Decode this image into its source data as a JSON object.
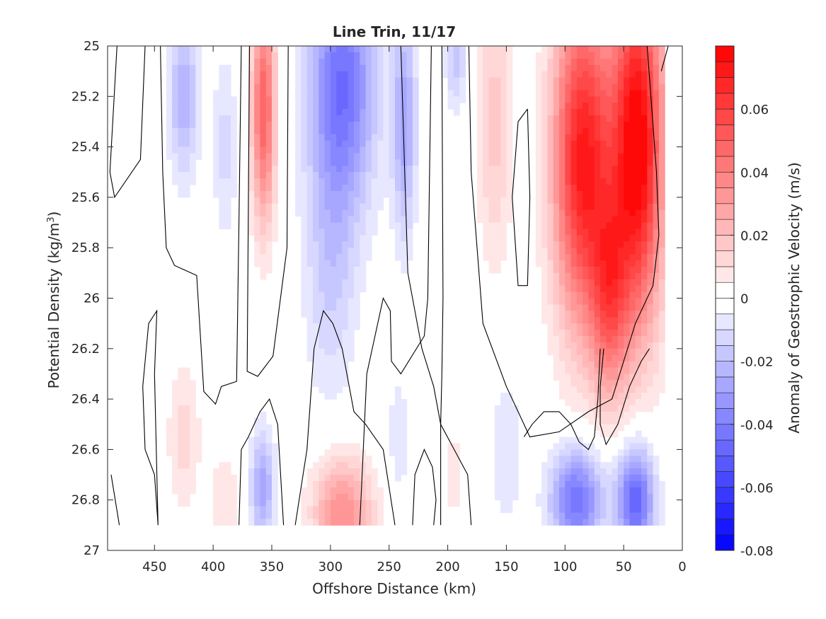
{
  "chart_data": {
    "type": "heatmap",
    "title": "Line Trin, 11/17",
    "xlabel": "Offshore Distance (km)",
    "ylabel_main": "Potential Density (kg/m",
    "ylabel_sup": "3",
    "ylabel_close": ")",
    "xlim": [
      490,
      0
    ],
    "ylim": [
      25,
      27
    ],
    "x_ticks": [
      450,
      400,
      350,
      300,
      250,
      200,
      150,
      100,
      50,
      0
    ],
    "y_ticks": [
      25,
      25.2,
      25.4,
      25.6,
      25.8,
      26,
      26.2,
      26.4,
      26.6,
      26.8,
      27
    ],
    "y_tick_labels": [
      "25",
      "25.2",
      "25.4",
      "25.6",
      "25.8",
      "26",
      "26.2",
      "26.4",
      "26.6",
      "26.8",
      "27"
    ],
    "colorbar": {
      "label": "Anomaly of Geostrophic Velocity (m/s)",
      "range": [
        -0.08,
        0.08
      ],
      "levels": 32,
      "ticks": [
        -0.08,
        -0.06,
        -0.04,
        -0.02,
        0,
        0.02,
        0.04,
        0.06
      ],
      "tick_labels": [
        "-0.08",
        "-0.06",
        "-0.04",
        "-0.02",
        "0",
        "0.02",
        "0.04",
        "0.06"
      ],
      "low_color": "#0000ff",
      "mid_color": "#ffffff",
      "high_color": "#ff0000"
    },
    "data_extent": {
      "x": [
        445,
        15
      ],
      "y": [
        25,
        26.9
      ]
    },
    "features": [
      {
        "x": 425,
        "y": 25.2,
        "rx": 13,
        "ry": 0.32,
        "v": -0.024
      },
      {
        "x": 390,
        "y": 25.4,
        "rx": 10,
        "ry": 0.35,
        "v": -0.012
      },
      {
        "x": 425,
        "y": 26.55,
        "rx": 14,
        "ry": 0.3,
        "v": 0.012
      },
      {
        "x": 390,
        "y": 26.8,
        "rx": 12,
        "ry": 0.2,
        "v": 0.01
      },
      {
        "x": 357,
        "y": 25.25,
        "rx": 10,
        "ry": 0.45,
        "v": 0.05
      },
      {
        "x": 358,
        "y": 26.75,
        "rx": 10,
        "ry": 0.22,
        "v": -0.028
      },
      {
        "x": 290,
        "y": 25.15,
        "rx": 28,
        "ry": 0.5,
        "v": -0.045
      },
      {
        "x": 300,
        "y": 25.9,
        "rx": 22,
        "ry": 0.5,
        "v": -0.015
      },
      {
        "x": 290,
        "y": 26.85,
        "rx": 25,
        "ry": 0.22,
        "v": 0.035
      },
      {
        "x": 237,
        "y": 25.3,
        "rx": 10,
        "ry": 0.45,
        "v": -0.028
      },
      {
        "x": 242,
        "y": 26.55,
        "rx": 8,
        "ry": 0.25,
        "v": -0.01
      },
      {
        "x": 193,
        "y": 25.05,
        "rx": 9,
        "ry": 0.2,
        "v": -0.018
      },
      {
        "x": 195,
        "y": 26.7,
        "rx": 8,
        "ry": 0.2,
        "v": 0.008
      },
      {
        "x": 160,
        "y": 25.3,
        "rx": 15,
        "ry": 0.55,
        "v": 0.017
      },
      {
        "x": 150,
        "y": 26.6,
        "rx": 14,
        "ry": 0.3,
        "v": -0.01
      },
      {
        "x": 85,
        "y": 25.45,
        "rx": 25,
        "ry": 0.65,
        "v": 0.072
      },
      {
        "x": 38,
        "y": 25.4,
        "rx": 22,
        "ry": 0.7,
        "v": 0.082
      },
      {
        "x": 62,
        "y": 26.0,
        "rx": 16,
        "ry": 0.4,
        "v": 0.04
      },
      {
        "x": 90,
        "y": 26.8,
        "rx": 22,
        "ry": 0.2,
        "v": -0.045
      },
      {
        "x": 40,
        "y": 26.8,
        "rx": 16,
        "ry": 0.22,
        "v": -0.05
      }
    ],
    "zero_contours": [
      [
        [
          482,
          25
        ],
        [
          488,
          25.5
        ],
        [
          484,
          25.6
        ],
        [
          462,
          25.45
        ],
        [
          458,
          25.0
        ]
      ],
      [
        [
          487,
          26.7
        ],
        [
          480,
          26.9
        ]
      ],
      [
        [
          447,
          26.9
        ],
        [
          450,
          26.7
        ],
        [
          458,
          26.6
        ],
        [
          460,
          26.35
        ],
        [
          455,
          26.1
        ],
        [
          448,
          26.05
        ],
        [
          450,
          26.3
        ],
        [
          447,
          26.9
        ]
      ],
      [
        [
          445,
          25
        ],
        [
          443,
          25.5
        ],
        [
          440,
          25.8
        ],
        [
          433,
          25.87
        ],
        [
          414,
          25.91
        ],
        [
          408,
          26.37
        ],
        [
          398,
          26.42
        ],
        [
          393,
          26.35
        ],
        [
          380,
          26.33
        ],
        [
          378,
          25.7
        ],
        [
          376,
          25.0
        ]
      ],
      [
        [
          369,
          25
        ],
        [
          371,
          26.29
        ],
        [
          362,
          26.31
        ],
        [
          349,
          26.23
        ],
        [
          337,
          25.8
        ],
        [
          336,
          25.0
        ]
      ],
      [
        [
          240,
          25
        ],
        [
          234,
          25.9
        ],
        [
          222,
          26.2
        ],
        [
          212,
          26.35
        ],
        [
          206,
          26.5
        ],
        [
          183,
          26.7
        ],
        [
          180,
          26.9
        ]
      ],
      [
        [
          214,
          25
        ],
        [
          217,
          26.0
        ],
        [
          220,
          26.15
        ],
        [
          240,
          26.3
        ],
        [
          248,
          26.25
        ],
        [
          249,
          26.05
        ],
        [
          255,
          26.0
        ],
        [
          262,
          26.15
        ],
        [
          269,
          26.3
        ],
        [
          275,
          26.9
        ]
      ],
      [
        [
          378,
          26.9
        ],
        [
          376,
          26.6
        ],
        [
          370,
          26.55
        ],
        [
          360,
          26.45
        ],
        [
          352,
          26.4
        ],
        [
          345,
          26.5
        ],
        [
          340,
          26.9
        ]
      ],
      [
        [
          330,
          26.9
        ],
        [
          320,
          26.6
        ],
        [
          314,
          26.2
        ],
        [
          306,
          26.05
        ],
        [
          298,
          26.1
        ],
        [
          290,
          26.2
        ],
        [
          280,
          26.45
        ],
        [
          270,
          26.5
        ],
        [
          255,
          26.6
        ],
        [
          245,
          26.9
        ]
      ],
      [
        [
          230,
          26.9
        ],
        [
          228,
          26.7
        ],
        [
          220,
          26.6
        ],
        [
          213,
          26.67
        ],
        [
          210,
          26.8
        ],
        [
          212,
          26.9
        ]
      ],
      [
        [
          205,
          25
        ],
        [
          204,
          26.0
        ],
        [
          205,
          26.3
        ],
        [
          206,
          26.5
        ],
        [
          206,
          26.9
        ]
      ],
      [
        [
          132,
          25.25
        ],
        [
          140,
          25.3
        ],
        [
          145,
          25.6
        ],
        [
          140,
          25.95
        ],
        [
          132,
          25.95
        ],
        [
          130,
          25.6
        ],
        [
          132,
          25.25
        ]
      ],
      [
        [
          30,
          25
        ],
        [
          22,
          25.5
        ],
        [
          20,
          25.75
        ],
        [
          25,
          25.95
        ],
        [
          40,
          26.1
        ],
        [
          60,
          26.4
        ],
        [
          80,
          26.45
        ],
        [
          105,
          26.53
        ],
        [
          130,
          26.55
        ],
        [
          150,
          26.35
        ],
        [
          170,
          26.1
        ],
        [
          180,
          25.5
        ],
        [
          182,
          25.0
        ]
      ],
      [
        [
          70,
          26.2
        ],
        [
          72,
          26.4
        ],
        [
          75,
          26.55
        ],
        [
          80,
          26.6
        ],
        [
          88,
          26.57
        ],
        [
          95,
          26.5
        ],
        [
          105,
          26.45
        ],
        [
          118,
          26.45
        ],
        [
          128,
          26.5
        ],
        [
          135,
          26.55
        ]
      ],
      [
        [
          12,
          25
        ],
        [
          18,
          25.1
        ]
      ],
      [
        [
          67,
          26.2
        ],
        [
          70,
          26.35
        ],
        [
          70,
          26.5
        ],
        [
          65,
          26.58
        ],
        [
          55,
          26.5
        ],
        [
          45,
          26.35
        ],
        [
          35,
          26.25
        ],
        [
          28,
          26.2
        ]
      ]
    ]
  }
}
